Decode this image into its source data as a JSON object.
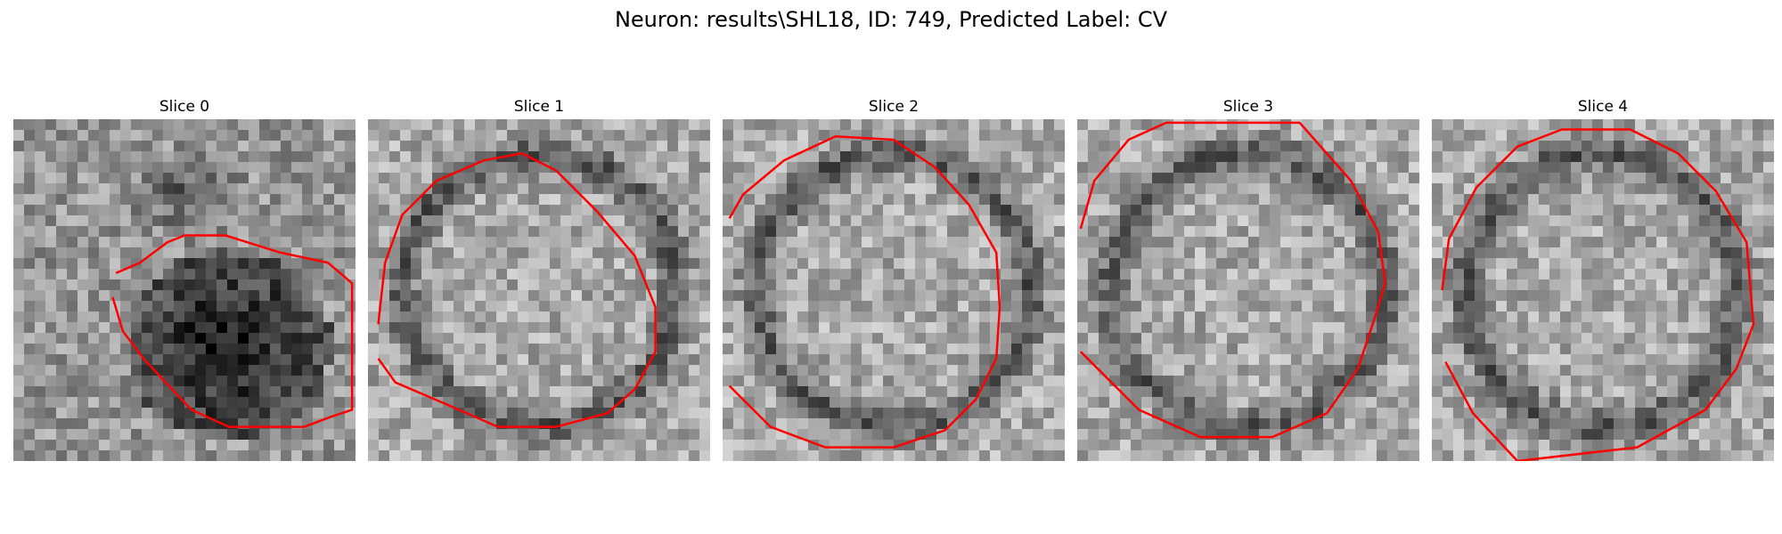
{
  "figure": {
    "title": "Neuron: results\\SHL18, ID: 749, Predicted Label: CV"
  },
  "panels": [
    {
      "title": "Slice 0",
      "pattern": "dark-blob",
      "seed": 11
    },
    {
      "title": "Slice 1",
      "pattern": "ring",
      "seed": 23
    },
    {
      "title": "Slice 2",
      "pattern": "ring",
      "seed": 37
    },
    {
      "title": "Slice 3",
      "pattern": "ring",
      "seed": 41
    },
    {
      "title": "Slice 4",
      "pattern": "ring",
      "seed": 59
    }
  ],
  "colors": {
    "contour": "#ff0000"
  },
  "contours_unit_coords": [
    [
      [
        0.3,
        0.45
      ],
      [
        0.37,
        0.42
      ],
      [
        0.45,
        0.36
      ],
      [
        0.5,
        0.34
      ],
      [
        0.62,
        0.34
      ],
      [
        0.78,
        0.39
      ],
      [
        0.92,
        0.42
      ],
      [
        0.99,
        0.48
      ],
      [
        0.99,
        0.85
      ],
      [
        0.93,
        0.87
      ],
      [
        0.85,
        0.9
      ],
      [
        0.75,
        0.9
      ],
      [
        0.63,
        0.9
      ],
      [
        0.52,
        0.85
      ],
      [
        0.38,
        0.7
      ],
      [
        0.32,
        0.62
      ],
      [
        0.29,
        0.52
      ]
    ],
    [
      [
        0.03,
        0.6
      ],
      [
        0.05,
        0.42
      ],
      [
        0.1,
        0.28
      ],
      [
        0.2,
        0.18
      ],
      [
        0.34,
        0.12
      ],
      [
        0.45,
        0.1
      ],
      [
        0.55,
        0.15
      ],
      [
        0.67,
        0.27
      ],
      [
        0.78,
        0.4
      ],
      [
        0.84,
        0.55
      ],
      [
        0.84,
        0.68
      ],
      [
        0.78,
        0.79
      ],
      [
        0.7,
        0.86
      ],
      [
        0.55,
        0.9
      ],
      [
        0.38,
        0.9
      ],
      [
        0.22,
        0.83
      ],
      [
        0.08,
        0.77
      ],
      [
        0.03,
        0.7
      ]
    ],
    [
      [
        0.02,
        0.29
      ],
      [
        0.06,
        0.22
      ],
      [
        0.18,
        0.12
      ],
      [
        0.33,
        0.05
      ],
      [
        0.5,
        0.06
      ],
      [
        0.62,
        0.14
      ],
      [
        0.72,
        0.25
      ],
      [
        0.8,
        0.39
      ],
      [
        0.81,
        0.55
      ],
      [
        0.8,
        0.7
      ],
      [
        0.74,
        0.82
      ],
      [
        0.65,
        0.91
      ],
      [
        0.5,
        0.96
      ],
      [
        0.3,
        0.96
      ],
      [
        0.14,
        0.9
      ],
      [
        0.04,
        0.8
      ],
      [
        0.02,
        0.78
      ]
    ],
    [
      [
        0.01,
        0.32
      ],
      [
        0.05,
        0.18
      ],
      [
        0.15,
        0.06
      ],
      [
        0.26,
        0.01
      ],
      [
        0.65,
        0.01
      ],
      [
        0.8,
        0.18
      ],
      [
        0.88,
        0.33
      ],
      [
        0.9,
        0.48
      ],
      [
        0.87,
        0.58
      ],
      [
        0.82,
        0.73
      ],
      [
        0.73,
        0.86
      ],
      [
        0.57,
        0.93
      ],
      [
        0.36,
        0.93
      ],
      [
        0.18,
        0.85
      ],
      [
        0.06,
        0.73
      ],
      [
        0.01,
        0.68
      ]
    ],
    [
      [
        0.03,
        0.5
      ],
      [
        0.05,
        0.35
      ],
      [
        0.13,
        0.2
      ],
      [
        0.25,
        0.08
      ],
      [
        0.38,
        0.03
      ],
      [
        0.58,
        0.03
      ],
      [
        0.72,
        0.1
      ],
      [
        0.83,
        0.21
      ],
      [
        0.92,
        0.36
      ],
      [
        0.94,
        0.6
      ],
      [
        0.89,
        0.73
      ],
      [
        0.8,
        0.85
      ],
      [
        0.6,
        0.96
      ],
      [
        0.25,
        1.0
      ],
      [
        0.12,
        0.86
      ],
      [
        0.04,
        0.71
      ]
    ]
  ]
}
